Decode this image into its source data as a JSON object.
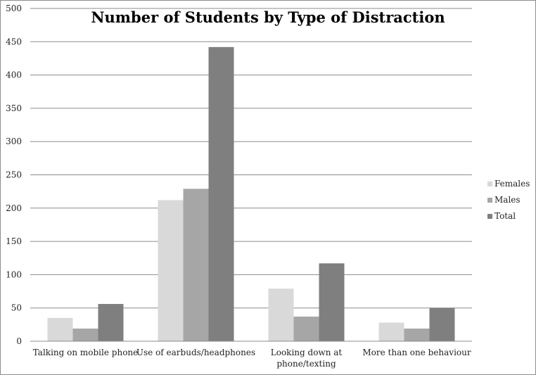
{
  "chart_data": {
    "type": "bar",
    "title": "Number of Students by Type of Distraction",
    "xlabel": "",
    "ylabel": "",
    "ylim": [
      0,
      500
    ],
    "yticks": [
      0,
      50,
      100,
      150,
      200,
      250,
      300,
      350,
      400,
      450,
      500
    ],
    "categories": [
      [
        "Talking on mobile phone"
      ],
      [
        "Use of earbuds/headphones"
      ],
      [
        "Looking down at",
        "phone/texting"
      ],
      [
        "More than one behaviour"
      ]
    ],
    "series": [
      {
        "name": "Females",
        "color": "#d9d9d9",
        "values": [
          35,
          212,
          79,
          28
        ]
      },
      {
        "name": "Males",
        "color": "#a6a6a6",
        "values": [
          19,
          229,
          37,
          19
        ]
      },
      {
        "name": "Total",
        "color": "#7f7f7f",
        "values": [
          56,
          442,
          117,
          50
        ]
      }
    ],
    "grid": true,
    "legend_position": "right"
  }
}
